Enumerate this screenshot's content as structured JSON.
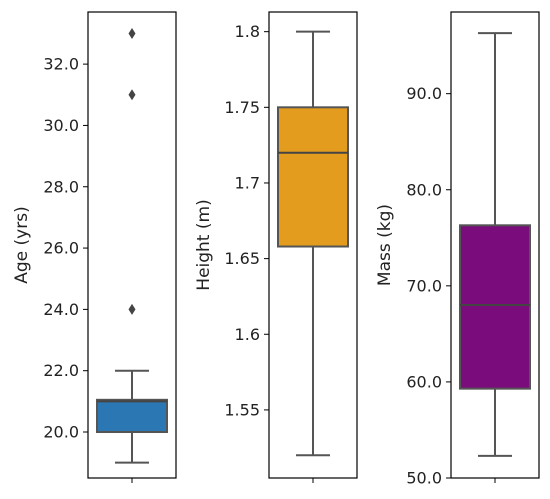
{
  "chart_data": [
    {
      "type": "box",
      "title": "",
      "xlabel": "",
      "ylabel": "Age (yrs)",
      "ylim": [
        18.5,
        33.7
      ],
      "yticks": [
        20,
        22,
        24,
        26,
        28,
        30,
        32
      ],
      "ytick_labels": [
        "20.0",
        "22.0",
        "24.0",
        "26.0",
        "28.0",
        "30.0",
        "32.0"
      ],
      "color": "#2b77b3",
      "box": {
        "whisker_low": 19,
        "q1": 20,
        "median": 21,
        "q3": 21.05,
        "whisker_high": 22
      },
      "outliers": [
        24,
        31,
        33
      ]
    },
    {
      "type": "box",
      "title": "",
      "xlabel": "",
      "ylabel": "Height (m)",
      "ylim": [
        1.505,
        1.813
      ],
      "yticks": [
        1.55,
        1.6,
        1.65,
        1.7,
        1.75,
        1.8
      ],
      "ytick_labels": [
        "1.55",
        "1.6",
        "1.65",
        "1.7",
        "1.75",
        "1.8"
      ],
      "color": "#e39c1e",
      "box": {
        "whisker_low": 1.52,
        "q1": 1.658,
        "median": 1.72,
        "q3": 1.75,
        "whisker_high": 1.8
      },
      "outliers": []
    },
    {
      "type": "box",
      "title": "",
      "xlabel": "",
      "ylabel": "Mass (kg)",
      "ylim": [
        50,
        98.5
      ],
      "yticks": [
        50,
        60,
        70,
        80,
        90
      ],
      "ytick_labels": [
        "50.0",
        "60.0",
        "70.0",
        "80.0",
        "90.0"
      ],
      "color": "#7a0c7c",
      "box": {
        "whisker_low": 52.3,
        "q1": 59.3,
        "median": 68,
        "q3": 76.3,
        "whisker_high": 96.3
      },
      "outliers": []
    }
  ]
}
